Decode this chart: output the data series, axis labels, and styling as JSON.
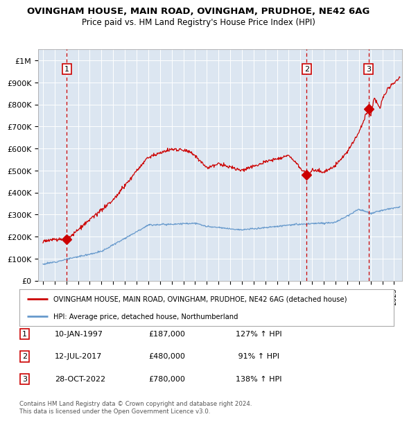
{
  "title": "OVINGHAM HOUSE, MAIN ROAD, OVINGHAM, PRUDHOE, NE42 6AG",
  "subtitle": "Price paid vs. HM Land Registry's House Price Index (HPI)",
  "plot_bg_color": "#dce6f1",
  "ylim": [
    0,
    1050000
  ],
  "yticks": [
    0,
    100000,
    200000,
    300000,
    400000,
    500000,
    600000,
    700000,
    800000,
    900000,
    1000000
  ],
  "ytick_labels": [
    "£0",
    "£100K",
    "£200K",
    "£300K",
    "£400K",
    "£500K",
    "£600K",
    "£700K",
    "£800K",
    "£900K",
    "£1M"
  ],
  "xlim_start": 1994.6,
  "xlim_end": 2025.7,
  "xticks": [
    1995,
    1996,
    1997,
    1998,
    1999,
    2000,
    2001,
    2002,
    2003,
    2004,
    2005,
    2006,
    2007,
    2008,
    2009,
    2010,
    2011,
    2012,
    2013,
    2014,
    2015,
    2016,
    2017,
    2018,
    2019,
    2020,
    2021,
    2022,
    2023,
    2024,
    2025
  ],
  "sale_dates": [
    1997.03,
    2017.53,
    2022.82
  ],
  "sale_prices": [
    187000,
    480000,
    780000
  ],
  "sale_labels": [
    "1",
    "2",
    "3"
  ],
  "red_line_color": "#cc0000",
  "blue_line_color": "#6699cc",
  "legend_line1": "OVINGHAM HOUSE, MAIN ROAD, OVINGHAM, PRUDHOE, NE42 6AG (detached house)",
  "legend_line2": "HPI: Average price, detached house, Northumberland",
  "table_rows": [
    [
      "1",
      "10-JAN-1997",
      "£187,000",
      "127% ↑ HPI"
    ],
    [
      "2",
      "12-JUL-2017",
      "£480,000",
      " 91% ↑ HPI"
    ],
    [
      "3",
      "28-OCT-2022",
      "£780,000",
      "138% ↑ HPI"
    ]
  ],
  "footer": "Contains HM Land Registry data © Crown copyright and database right 2024.\nThis data is licensed under the Open Government Licence v3.0."
}
